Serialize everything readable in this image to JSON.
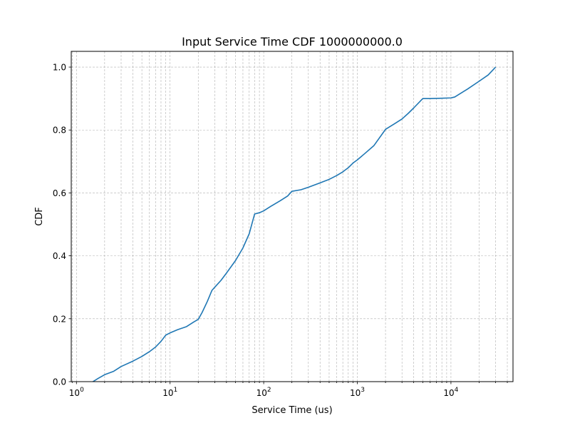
{
  "chart_data": {
    "type": "line",
    "title": "Input Service Time CDF 1000000000.0",
    "xlabel": "Service Time (us)",
    "ylabel": "CDF",
    "xscale": "log",
    "xlim": [
      0.88,
      46000
    ],
    "ylim": [
      0,
      1.05
    ],
    "x_ticks": [
      {
        "value": 1,
        "base": "10",
        "exp": "0"
      },
      {
        "value": 10,
        "base": "10",
        "exp": "1"
      },
      {
        "value": 100,
        "base": "10",
        "exp": "2"
      },
      {
        "value": 1000,
        "base": "10",
        "exp": "3"
      },
      {
        "value": 10000,
        "base": "10",
        "exp": "4"
      }
    ],
    "y_ticks": [
      "0.0",
      "0.2",
      "0.4",
      "0.6",
      "0.8",
      "1.0"
    ],
    "grid": true,
    "line_color": "#1f77b4",
    "series": [
      {
        "x": [
          1.5,
          1.7,
          2,
          2.5,
          3,
          4,
          5,
          6,
          7,
          8,
          9,
          10,
          12,
          15,
          18,
          20,
          22,
          25,
          28,
          30,
          35,
          40,
          50,
          60,
          70,
          80,
          90,
          100,
          120,
          150,
          180,
          200,
          250,
          300,
          400,
          500,
          600,
          700,
          800,
          900,
          1000,
          1200,
          1500,
          2000,
          2500,
          3000,
          3500,
          4000,
          5000,
          6000,
          8000,
          10000,
          11000,
          12000,
          15000,
          20000,
          25000,
          30000
        ],
        "y": [
          0,
          0.01,
          0.022,
          0.033,
          0.048,
          0.065,
          0.08,
          0.095,
          0.11,
          0.128,
          0.148,
          0.155,
          0.165,
          0.175,
          0.19,
          0.198,
          0.22,
          0.255,
          0.29,
          0.3,
          0.322,
          0.345,
          0.385,
          0.425,
          0.47,
          0.533,
          0.537,
          0.543,
          0.558,
          0.575,
          0.59,
          0.605,
          0.61,
          0.618,
          0.632,
          0.643,
          0.655,
          0.667,
          0.68,
          0.695,
          0.705,
          0.725,
          0.75,
          0.802,
          0.82,
          0.835,
          0.853,
          0.87,
          0.9,
          0.9,
          0.901,
          0.902,
          0.905,
          0.912,
          0.93,
          0.955,
          0.975,
          1.0
        ]
      }
    ]
  }
}
